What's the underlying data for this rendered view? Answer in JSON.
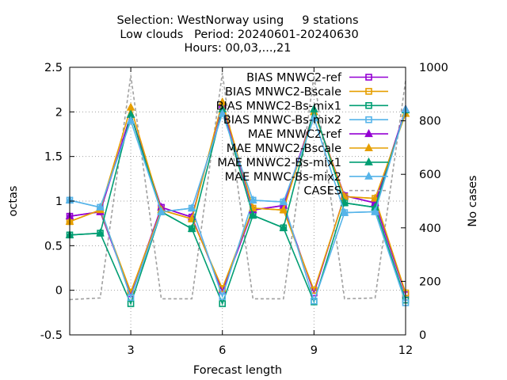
{
  "chart_data": {
    "type": "line",
    "title_lines": [
      "Selection: WestNorway using     9 stations",
      "Low clouds   Period: 20240601-20240630",
      "Hours: 00,03,...,21"
    ],
    "xlabel": "Forecast length",
    "ylabel": "octas",
    "y2label": "No cases",
    "xlim": [
      1,
      12
    ],
    "ylim": [
      -0.5,
      2.5
    ],
    "y2lim": [
      0,
      1000
    ],
    "x_ticks": [
      3,
      6,
      9,
      12
    ],
    "y_ticks": [
      -0.5,
      0,
      0.5,
      1,
      1.5,
      2,
      2.5
    ],
    "y_tick_labels": [
      "-0.5",
      "0",
      "0.5",
      "1",
      "1.5",
      "2",
      "2.5"
    ],
    "y2_ticks": [
      0,
      200,
      400,
      600,
      800,
      1000
    ],
    "grid": true,
    "legend_position": "top-right",
    "x": [
      1,
      2,
      3,
      4,
      5,
      6,
      7,
      8,
      9,
      10,
      11,
      12
    ],
    "series": [
      {
        "name": "BIAS MNWC2-ref",
        "axis": "y1",
        "color": "#9400d3",
        "marker": "square-open",
        "values": [
          0.83,
          0.88,
          -0.04,
          0.93,
          0.82,
          -0.01,
          0.9,
          0.95,
          -0.03,
          1.06,
          0.98,
          -0.05
        ]
      },
      {
        "name": "BIAS MNWC2-Bscale",
        "axis": "y1",
        "color": "#e69f00",
        "marker": "square-open",
        "values": [
          0.77,
          0.9,
          -0.02,
          0.9,
          0.8,
          0.02,
          0.92,
          0.9,
          0.0,
          1.05,
          1.03,
          -0.03
        ]
      },
      {
        "name": "BIAS MNWC2-Bs-mix1",
        "axis": "y1",
        "color": "#009e73",
        "marker": "square-open",
        "values": [
          0.62,
          0.64,
          -0.15,
          0.88,
          0.69,
          -0.15,
          0.84,
          0.7,
          -0.13,
          0.98,
          0.93,
          -0.11
        ]
      },
      {
        "name": "BIAS MNWC-Bs-mix2",
        "axis": "y1",
        "color": "#56b4e9",
        "marker": "square-open",
        "values": [
          1.01,
          0.93,
          -0.08,
          0.88,
          0.92,
          -0.07,
          1.01,
          0.99,
          -0.12,
          0.87,
          0.88,
          -0.14
        ]
      },
      {
        "name": "MAE MNWC2-ref",
        "axis": "y1",
        "color": "#9400d3",
        "marker": "triangle-filled",
        "values": [
          0.83,
          0.88,
          1.97,
          0.93,
          0.82,
          2.08,
          0.9,
          0.95,
          2.0,
          1.06,
          0.98,
          2.03
        ]
      },
      {
        "name": "MAE MNWC2-Bscale",
        "axis": "y1",
        "color": "#e69f00",
        "marker": "triangle-filled",
        "values": [
          0.77,
          0.9,
          2.05,
          0.9,
          0.8,
          2.11,
          0.92,
          0.9,
          2.0,
          1.05,
          1.03,
          1.98
        ]
      },
      {
        "name": "MAE MNWC2-Bs-mix1",
        "axis": "y1",
        "color": "#009e73",
        "marker": "triangle-filled",
        "values": [
          0.62,
          0.64,
          1.97,
          0.88,
          0.69,
          2.03,
          0.84,
          0.7,
          2.03,
          0.98,
          0.93,
          2.02
        ]
      },
      {
        "name": "MAE MNWC-Bs-mix2",
        "axis": "y1",
        "color": "#56b4e9",
        "marker": "triangle-filled",
        "values": [
          1.01,
          0.93,
          1.9,
          0.88,
          0.92,
          1.98,
          1.01,
          0.99,
          1.93,
          0.87,
          0.88,
          2.03
        ]
      },
      {
        "name": "CASES",
        "axis": "y2",
        "color": "#a0a0a0",
        "marker": "none",
        "dash": true,
        "values": [
          132,
          138,
          970,
          135,
          135,
          980,
          135,
          135,
          970,
          135,
          138,
          950
        ]
      }
    ]
  }
}
